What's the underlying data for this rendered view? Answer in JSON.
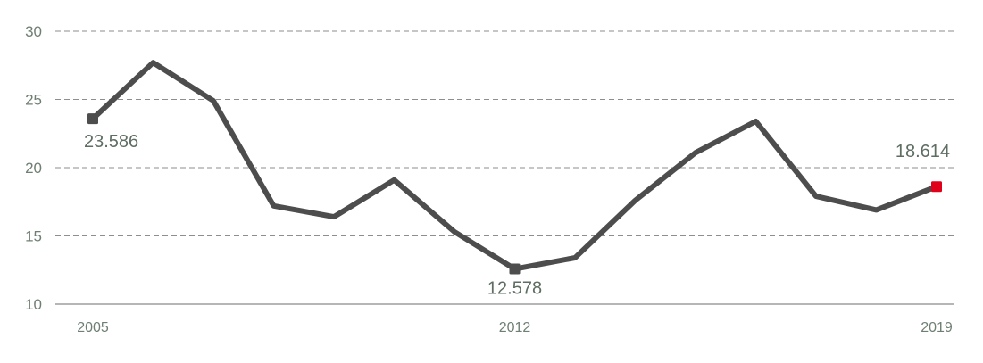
{
  "chart_data": {
    "type": "line",
    "x": [
      2005,
      2006,
      2007,
      2008,
      2009,
      2010,
      2011,
      2012,
      2013,
      2014,
      2015,
      2016,
      2017,
      2018,
      2019
    ],
    "series": [
      {
        "values": [
          23.586,
          27.7,
          24.9,
          17.2,
          16.4,
          19.1,
          15.3,
          12.578,
          13.4,
          17.6,
          21.1,
          23.4,
          17.9,
          16.9,
          18.614
        ]
      }
    ],
    "ylim": [
      10,
      30
    ],
    "yticks": [
      10,
      15,
      20,
      25,
      30
    ],
    "xtick_labels": [
      "2005",
      "2012",
      "2019"
    ],
    "grid": "horizontal-dashed",
    "annotations": [
      {
        "x": 2005,
        "y": 23.586,
        "label": "23.586"
      },
      {
        "x": 2012,
        "y": 12.578,
        "label": "12.578"
      },
      {
        "x": 2019,
        "y": 18.614,
        "label": "18.614"
      }
    ],
    "colors": {
      "line": "#4d4d4d",
      "marker": "#4d4d4d",
      "highlight": "#e0001a"
    }
  }
}
